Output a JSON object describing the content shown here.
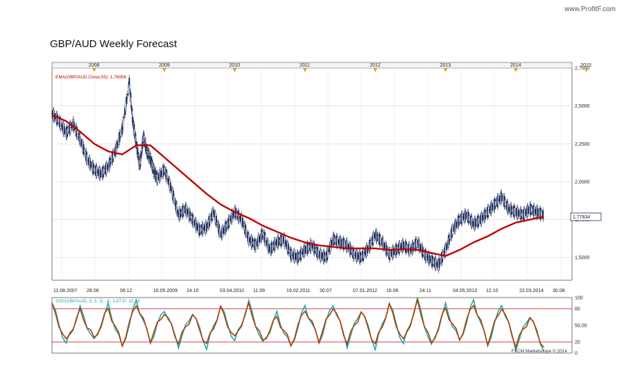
{
  "watermark": "www.ProfitF.com",
  "chart_data": [
    {
      "type": "line",
      "title": "GBP/AUD Weekly Forecast",
      "indicator_label": "EMA(GBP/AUD.Close,55): 1,76956",
      "last_price_label": "1,77834",
      "year_axis_labels": [
        "2008",
        "2009",
        "2010",
        "2011",
        "2012",
        "2013",
        "2014",
        "2015"
      ],
      "x_tick_labels": [
        "11.08.2007",
        "28.06",
        "06.12",
        "16.05.2009",
        "24.10",
        "03.04.2010",
        "11.09",
        "19.02.2011",
        "30.07",
        "07.01.2012",
        "16.06",
        "24.11",
        "04.05.2013",
        "12.10",
        "22.03.2014",
        "30.08"
      ],
      "y_tick_labels": [
        "2,7500",
        "2,5000",
        "2,2500",
        "2,0000",
        "1,7500",
        "1,5000"
      ],
      "ylim": [
        1.35,
        2.75
      ],
      "x_range": [
        2007.6,
        2015.0
      ],
      "grid": true,
      "series": [
        {
          "name": "GBP/AUD",
          "style": "candlestick",
          "color": "#1a2a5a",
          "x": [
            2007.6,
            2007.7,
            2007.8,
            2007.9,
            2008.0,
            2008.1,
            2008.2,
            2008.3,
            2008.4,
            2008.5,
            2008.6,
            2008.7,
            2008.75,
            2008.8,
            2008.85,
            2008.9,
            2008.95,
            2009.0,
            2009.05,
            2009.1,
            2009.2,
            2009.3,
            2009.4,
            2009.5,
            2009.6,
            2009.7,
            2009.8,
            2009.9,
            2010.0,
            2010.1,
            2010.2,
            2010.3,
            2010.4,
            2010.5,
            2010.6,
            2010.7,
            2010.8,
            2010.9,
            2011.0,
            2011.1,
            2011.2,
            2011.3,
            2011.4,
            2011.5,
            2011.6,
            2011.7,
            2011.8,
            2011.9,
            2012.0,
            2012.1,
            2012.2,
            2012.3,
            2012.4,
            2012.5,
            2012.6,
            2012.7,
            2012.8,
            2012.9,
            2013.0,
            2013.1,
            2013.2,
            2013.3,
            2013.4,
            2013.5,
            2013.6,
            2013.7,
            2013.8,
            2013.9,
            2014.0,
            2014.1,
            2014.2,
            2014.3,
            2014.4,
            2014.5,
            2014.6
          ],
          "y": [
            2.45,
            2.4,
            2.32,
            2.38,
            2.28,
            2.15,
            2.08,
            2.05,
            2.1,
            2.2,
            2.35,
            2.65,
            2.4,
            2.25,
            2.1,
            2.3,
            2.2,
            2.15,
            2.07,
            2.02,
            2.08,
            1.95,
            1.78,
            1.82,
            1.75,
            1.68,
            1.7,
            1.8,
            1.65,
            1.72,
            1.8,
            1.75,
            1.62,
            1.58,
            1.66,
            1.55,
            1.6,
            1.62,
            1.52,
            1.5,
            1.55,
            1.58,
            1.52,
            1.5,
            1.62,
            1.6,
            1.58,
            1.52,
            1.5,
            1.56,
            1.65,
            1.6,
            1.52,
            1.55,
            1.58,
            1.55,
            1.6,
            1.52,
            1.48,
            1.45,
            1.55,
            1.68,
            1.75,
            1.78,
            1.72,
            1.75,
            1.8,
            1.85,
            1.9,
            1.82,
            1.8,
            1.78,
            1.82,
            1.8,
            1.78
          ]
        },
        {
          "name": "EMA(GBP/AUD.Close,55)",
          "style": "line",
          "color": "#c00000",
          "x": [
            2007.6,
            2007.8,
            2008.0,
            2008.2,
            2008.4,
            2008.6,
            2008.8,
            2009.0,
            2009.2,
            2009.4,
            2009.6,
            2009.8,
            2010.0,
            2010.2,
            2010.4,
            2010.6,
            2010.8,
            2011.0,
            2011.2,
            2011.4,
            2011.6,
            2011.8,
            2012.0,
            2012.2,
            2012.4,
            2012.6,
            2012.8,
            2013.0,
            2013.2,
            2013.4,
            2013.6,
            2013.8,
            2014.0,
            2014.2,
            2014.4,
            2014.6
          ],
          "y": [
            2.44,
            2.4,
            2.33,
            2.25,
            2.2,
            2.18,
            2.24,
            2.24,
            2.16,
            2.08,
            2.0,
            1.92,
            1.85,
            1.8,
            1.76,
            1.71,
            1.67,
            1.63,
            1.6,
            1.58,
            1.57,
            1.56,
            1.56,
            1.56,
            1.55,
            1.555,
            1.55,
            1.53,
            1.51,
            1.55,
            1.6,
            1.64,
            1.69,
            1.73,
            1.75,
            1.77
          ]
        }
      ]
    },
    {
      "type": "line",
      "title": "SSD(GBP/AUD, 5, 3, 3) - K: 2,67  D: 10,13",
      "ylim": [
        0,
        100
      ],
      "y_tick_labels": [
        "100",
        "80",
        "50,00",
        "20",
        "0"
      ],
      "reference_lines": [
        20,
        80
      ],
      "footer": "FXCM Marketscope © 2014",
      "series": [
        {
          "name": "K",
          "style": "line",
          "color": "#22a8a8",
          "x": [
            2007.6,
            2007.8,
            2008.0,
            2008.2,
            2008.4,
            2008.6,
            2008.8,
            2009.0,
            2009.2,
            2009.4,
            2009.6,
            2009.8,
            2010.0,
            2010.2,
            2010.4,
            2010.6,
            2010.8,
            2011.0,
            2011.2,
            2011.4,
            2011.6,
            2011.8,
            2012.0,
            2012.2,
            2012.4,
            2012.6,
            2012.8,
            2013.0,
            2013.2,
            2013.4,
            2013.6,
            2013.8,
            2014.0,
            2014.2,
            2014.4,
            2014.6
          ],
          "y": [
            90,
            15,
            80,
            20,
            85,
            10,
            95,
            20,
            80,
            15,
            75,
            10,
            85,
            20,
            90,
            15,
            70,
            10,
            85,
            20,
            90,
            15,
            80,
            10,
            90,
            15,
            95,
            10,
            85,
            20,
            95,
            15,
            90,
            10,
            70,
            3
          ]
        },
        {
          "name": "D",
          "style": "line",
          "color": "#b33a00",
          "x": [
            2007.6,
            2007.8,
            2008.0,
            2008.2,
            2008.4,
            2008.6,
            2008.8,
            2009.0,
            2009.2,
            2009.4,
            2009.6,
            2009.8,
            2010.0,
            2010.2,
            2010.4,
            2010.6,
            2010.8,
            2011.0,
            2011.2,
            2011.4,
            2011.6,
            2011.8,
            2012.0,
            2012.2,
            2012.4,
            2012.6,
            2012.8,
            2013.0,
            2013.2,
            2013.4,
            2013.6,
            2013.8,
            2014.0,
            2014.2,
            2014.4,
            2014.6
          ],
          "y": [
            85,
            20,
            75,
            25,
            80,
            15,
            90,
            25,
            75,
            20,
            70,
            15,
            80,
            25,
            85,
            20,
            65,
            15,
            80,
            25,
            85,
            20,
            75,
            15,
            85,
            20,
            90,
            15,
            80,
            25,
            90,
            20,
            85,
            15,
            65,
            10
          ]
        }
      ]
    }
  ]
}
